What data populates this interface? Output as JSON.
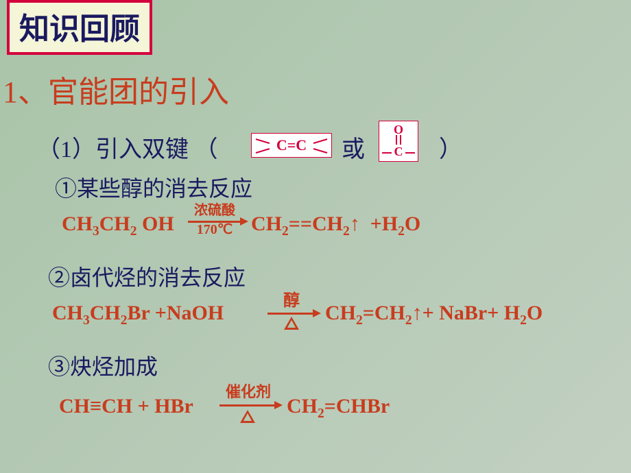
{
  "titleBox": "知识回顾",
  "heading": "1、官能团的引入",
  "sub1": "（1）引入双键 （",
  "sub1_or": "或",
  "sub1_close": "）",
  "item1": "①某些醇的消去反应",
  "item2": "②卤代烃的消去反应",
  "item3": "③炔烃加成",
  "eq1_left": "CH<sub>3</sub>CH<sub>2</sub> OH",
  "eq1_cond1": "浓硫酸",
  "eq1_cond2": "170℃",
  "eq1_right": "CH<sub>2</sub>=​=CH<sub>2</sub>↑&nbsp;&nbsp;+H<sub>2</sub>O",
  "eq2_left": "CH<sub>3</sub>CH<sub>2</sub>Br +NaOH",
  "eq2_cond": "醇",
  "eq2_right": "CH<sub>2</sub>=CH<sub>2</sub>↑+ NaBr+ H<sub>2</sub>O",
  "eq3_left": "CH≡CH + HBr",
  "eq3_cond": "催化剂",
  "eq3_right": "CH<sub>2</sub>=CHBr",
  "colors": {
    "red": "#c83c1e",
    "deepred": "#d4003c",
    "navy": "#1a1a60",
    "boxbg": "#f5f5d8"
  }
}
